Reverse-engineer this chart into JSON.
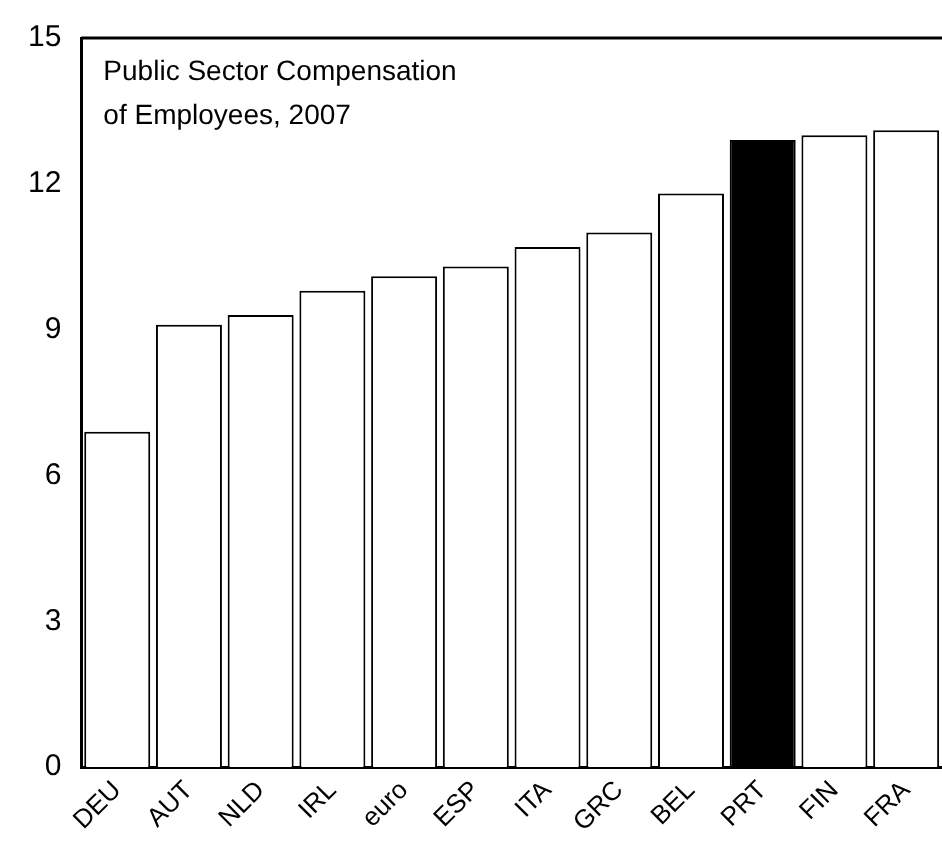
{
  "chart_data": {
    "type": "bar",
    "title": "Public Sector Compensation\nof Employees, 2007",
    "categories": [
      "DEU",
      "AUT",
      "NLD",
      "IRL",
      "euro",
      "ESP",
      "ITA",
      "GRC",
      "BEL",
      "PRT",
      "FIN",
      "FRA"
    ],
    "values": [
      6.9,
      9.1,
      9.3,
      9.8,
      10.1,
      10.3,
      10.7,
      11.0,
      11.8,
      12.9,
      13.0,
      13.1
    ],
    "colors": [
      "#ffffff",
      "#ffffff",
      "#ffffff",
      "#ffffff",
      "#ffffff",
      "#ffffff",
      "#ffffff",
      "#ffffff",
      "#ffffff",
      "#000000",
      "#ffffff",
      "#ffffff"
    ],
    "ylim": [
      0,
      15
    ],
    "yticks": [
      0,
      3,
      6,
      9,
      12,
      15
    ],
    "grid": false,
    "legend": false
  }
}
